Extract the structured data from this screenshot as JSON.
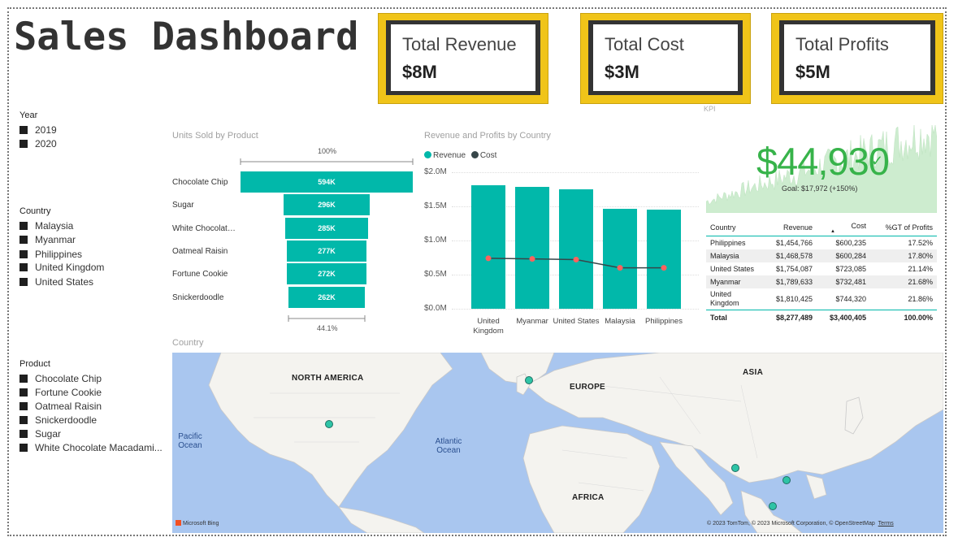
{
  "title": "Sales Dashboard",
  "kpi_cards": [
    {
      "label": "Total Revenue",
      "value": "$8M"
    },
    {
      "label": "Total Cost",
      "value": "$3M"
    },
    {
      "label": "Total Profits",
      "value": "$5M"
    }
  ],
  "kpi_caption": "KPI",
  "slicers": {
    "year": {
      "title": "Year",
      "items": [
        "2019",
        "2020"
      ]
    },
    "country": {
      "title": "Country",
      "items": [
        "Malaysia",
        "Myanmar",
        "Philippines",
        "United Kingdom",
        "United States"
      ]
    },
    "product": {
      "title": "Product",
      "items": [
        "Chocolate Chip",
        "Fortune Cookie",
        "Oatmeal Raisin",
        "Snickerdoodle",
        "Sugar",
        "White Chocolate Macadami..."
      ]
    }
  },
  "funnel": {
    "title": "Units Sold by Product",
    "top_pct": "100%",
    "bottom_pct": "44.1%"
  },
  "column_chart": {
    "title": "Revenue and Profits by Country",
    "legend": [
      "Revenue",
      "Cost"
    ]
  },
  "big_kpi": {
    "value": "$44,930",
    "check": "✓",
    "goal": "Goal: $17,972 (+150%)"
  },
  "table": {
    "headers": [
      "Country",
      "Revenue",
      "Cost",
      "%GT of Profits"
    ],
    "rows": [
      [
        "Philippines",
        "$1,454,766",
        "$600,235",
        "17.52%"
      ],
      [
        "Malaysia",
        "$1,468,578",
        "$600,284",
        "17.80%"
      ],
      [
        "United States",
        "$1,754,087",
        "$723,085",
        "21.14%"
      ],
      [
        "Myanmar",
        "$1,789,633",
        "$732,481",
        "21.68%"
      ],
      [
        "United Kingdom",
        "$1,810,425",
        "$744,320",
        "21.86%"
      ]
    ],
    "total": [
      "Total",
      "$8,277,489",
      "$3,400,405",
      "100.00%"
    ]
  },
  "map": {
    "title": "Country",
    "labels": [
      "NORTH AMERICA",
      "EUROPE",
      "ASIA",
      "AFRICA"
    ],
    "oceans": [
      "Pacific Ocean",
      "Atlantic Ocean"
    ],
    "brand": "Microsoft Bing",
    "copyright": "© 2023 TomTom, © 2023 Microsoft Corporation, © OpenStreetMap",
    "terms": "Terms"
  },
  "colors": {
    "accent": "#01b8aa",
    "cost": "#374649",
    "gold": "#f0c419",
    "kpi_green": "#37b34a"
  },
  "chart_data": [
    {
      "type": "bar",
      "title": "Units Sold by Product",
      "categories": [
        "Chocolate Chip",
        "Sugar",
        "White Chocolate...",
        "Oatmeal Raisin",
        "Fortune Cookie",
        "Snickerdoodle"
      ],
      "values": [
        594,
        296,
        285,
        277,
        272,
        262
      ],
      "value_labels": [
        "594K",
        "296K",
        "285K",
        "277K",
        "272K",
        "262K"
      ],
      "xlabel": "",
      "ylabel": ""
    },
    {
      "type": "bar",
      "title": "Revenue and Profits by Country",
      "categories": [
        "United Kingdom",
        "Myanmar",
        "United States",
        "Malaysia",
        "Philippines"
      ],
      "series": [
        {
          "name": "Revenue",
          "values": [
            1.81,
            1.79,
            1.75,
            1.47,
            1.45
          ]
        },
        {
          "name": "Cost",
          "values": [
            0.74,
            0.73,
            0.72,
            0.6,
            0.6
          ]
        }
      ],
      "yticks": [
        "$0.0M",
        "$0.5M",
        "$1.0M",
        "$1.5M",
        "$2.0M"
      ],
      "ylim": [
        0,
        2.0
      ],
      "xlabel": "",
      "ylabel": ""
    }
  ]
}
